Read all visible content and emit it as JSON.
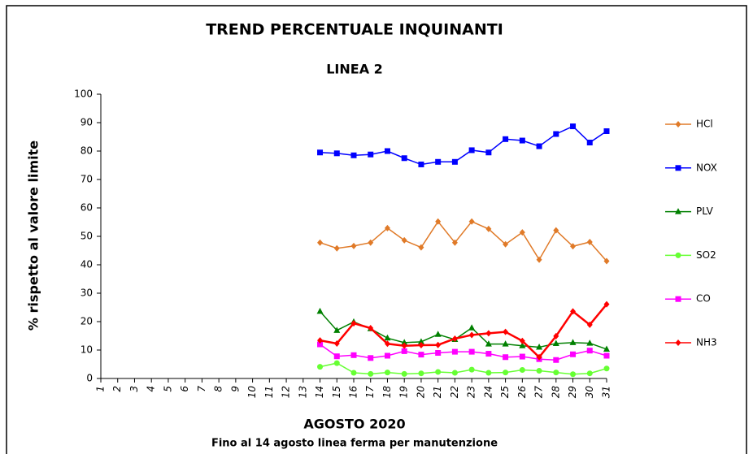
{
  "chart_data": {
    "type": "line",
    "title": "TREND PERCENTUALE INQUINANTI",
    "subtitle": "LINEA 2",
    "x_label": "AGOSTO 2020",
    "note": "Fino al 14 agosto linea ferma per manutenzione",
    "y_label": "% rispetto al valore limite",
    "categories": [
      "1",
      "2",
      "3",
      "4",
      "5",
      "6",
      "7",
      "8",
      "9",
      "10",
      "11",
      "12",
      "13",
      "14",
      "15",
      "16",
      "17",
      "18",
      "19",
      "20",
      "21",
      "22",
      "23",
      "24",
      "25",
      "26",
      "27",
      "28",
      "29",
      "30",
      "31"
    ],
    "ylim": [
      0,
      100
    ],
    "yticks": [
      0,
      10,
      20,
      30,
      40,
      50,
      60,
      70,
      80,
      90,
      100
    ],
    "grid": false,
    "legend": "right",
    "series": [
      {
        "name": "HCl",
        "color": "#e07a28",
        "marker": "diamond",
        "values": [
          null,
          null,
          null,
          null,
          null,
          null,
          null,
          null,
          null,
          null,
          null,
          null,
          null,
          47.8,
          45.8,
          46.6,
          47.8,
          52.9,
          48.6,
          46.1,
          55.2,
          47.8,
          55.2,
          52.6,
          47.2,
          51.4,
          41.8,
          52.1,
          46.5,
          48,
          41.3
        ]
      },
      {
        "name": "NOX",
        "color": "#0000ff",
        "marker": "square",
        "values": [
          null,
          null,
          null,
          null,
          null,
          null,
          null,
          null,
          null,
          null,
          null,
          null,
          null,
          79.5,
          79.2,
          78.5,
          78.8,
          80,
          77.5,
          75.3,
          76.2,
          76.2,
          80.3,
          79.5,
          84.2,
          83.7,
          81.7,
          86,
          88.7,
          83,
          87
        ]
      },
      {
        "name": "PLV",
        "color": "#008000",
        "marker": "triangle",
        "values": [
          null,
          null,
          null,
          null,
          null,
          null,
          null,
          null,
          null,
          null,
          null,
          null,
          null,
          23.6,
          16.9,
          19.9,
          17.5,
          14.2,
          12.6,
          12.9,
          15.5,
          13.7,
          17.8,
          12.1,
          12.1,
          11.5,
          11,
          12.3,
          12.6,
          12.4,
          10.3
        ]
      },
      {
        "name": "SO2",
        "color": "#66ff33",
        "marker": "circle",
        "values": [
          null,
          null,
          null,
          null,
          null,
          null,
          null,
          null,
          null,
          null,
          null,
          null,
          null,
          4.1,
          5.4,
          2,
          1.6,
          2.1,
          1.6,
          1.8,
          2.3,
          2,
          3.1,
          2,
          2.1,
          3,
          2.7,
          2.1,
          1.5,
          1.8,
          3.5
        ]
      },
      {
        "name": "CO",
        "color": "#ff00ff",
        "marker": "square",
        "values": [
          null,
          null,
          null,
          null,
          null,
          null,
          null,
          null,
          null,
          null,
          null,
          null,
          null,
          12,
          7.8,
          8.2,
          7.2,
          8,
          9.6,
          8.4,
          9,
          9.4,
          9.4,
          8.7,
          7.5,
          7.7,
          6.8,
          6.5,
          8.5,
          9.8,
          8
        ]
      },
      {
        "name": "NH3",
        "color": "#ff0000",
        "marker": "diamond",
        "values": [
          null,
          null,
          null,
          null,
          null,
          null,
          null,
          null,
          null,
          null,
          null,
          null,
          null,
          13.4,
          12.3,
          19.4,
          17.7,
          12.2,
          11.5,
          11.7,
          11.8,
          14,
          15.3,
          15.9,
          16.4,
          13.2,
          7.5,
          14.9,
          23.6,
          18.9,
          26.1
        ]
      }
    ]
  }
}
